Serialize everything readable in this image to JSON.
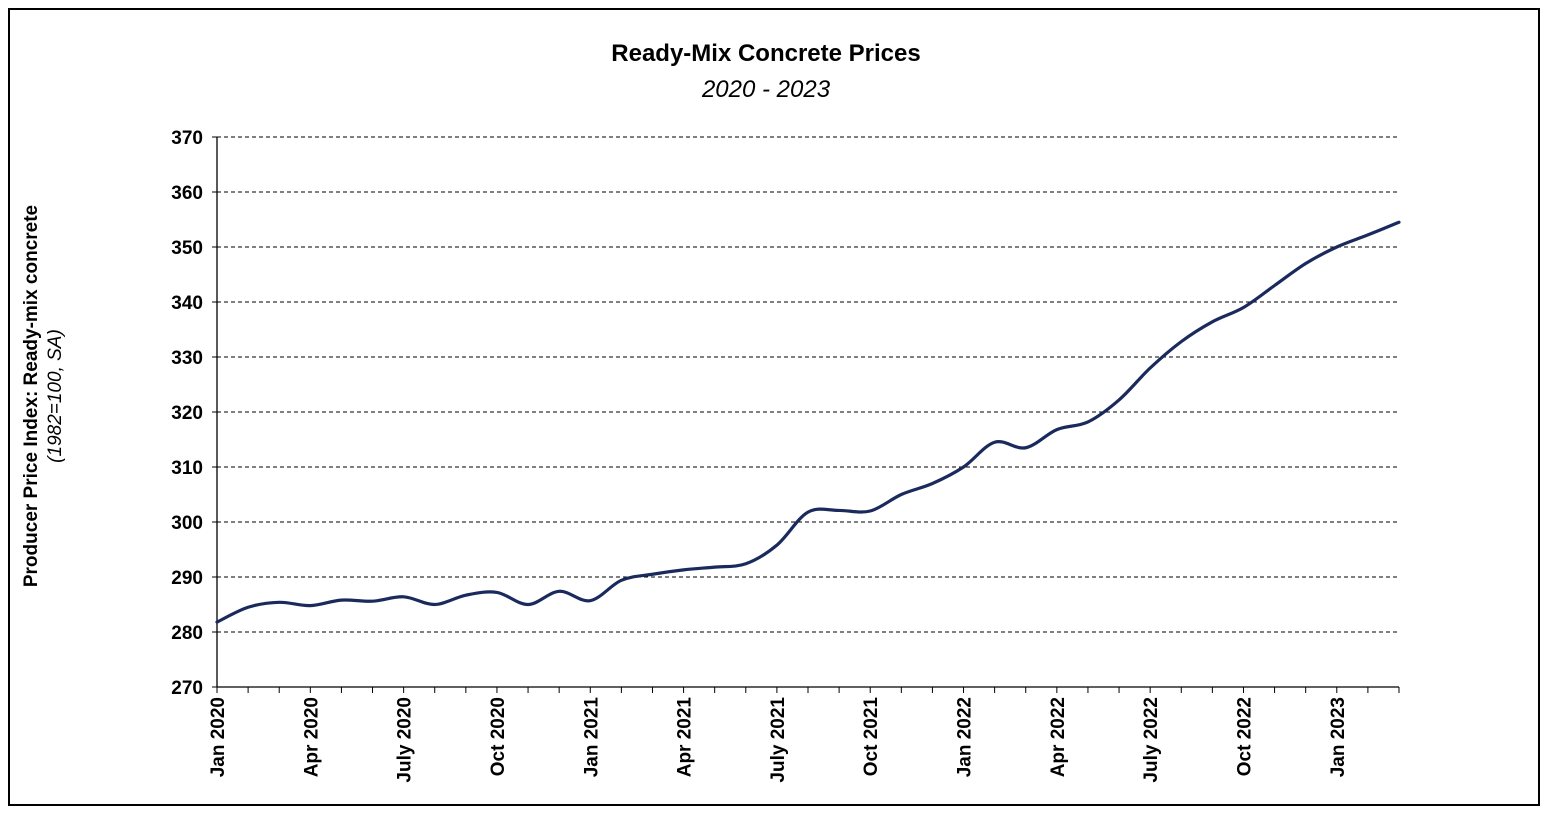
{
  "chart_data": {
    "type": "line",
    "title": "Ready-Mix Concrete Prices",
    "subtitle": "2020 - 2023",
    "ylabel_line1": "Producer Price Index: Ready-mix concrete",
    "ylabel_line2": "(1982=100, SA)",
    "xlabel": "",
    "ylim": [
      270,
      370
    ],
    "yticks": [
      270,
      280,
      290,
      300,
      310,
      320,
      330,
      340,
      350,
      360,
      370
    ],
    "grid": "horizontal dashed",
    "legend": "none",
    "line_color": "#1a2a5c",
    "x_tick_labels": [
      {
        "index": 0,
        "label": "Jan 2020"
      },
      {
        "index": 3,
        "label": "Apr 2020"
      },
      {
        "index": 6,
        "label": "July 2020"
      },
      {
        "index": 9,
        "label": "Oct 2020"
      },
      {
        "index": 12,
        "label": "Jan 2021"
      },
      {
        "index": 15,
        "label": "Apr 2021"
      },
      {
        "index": 18,
        "label": "July 2021"
      },
      {
        "index": 21,
        "label": "Oct 2021"
      },
      {
        "index": 24,
        "label": "Jan 2022"
      },
      {
        "index": 27,
        "label": "Apr 2022"
      },
      {
        "index": 30,
        "label": "July 2022"
      },
      {
        "index": 33,
        "label": "Oct 2022"
      },
      {
        "index": 36,
        "label": "Jan 2023"
      }
    ],
    "series": [
      {
        "values": [
          281.8,
          284.5,
          285.4,
          284.8,
          285.8,
          285.6,
          286.4,
          285.0,
          286.7,
          287.2,
          285.0,
          287.4,
          285.7,
          289.4,
          290.5,
          291.3,
          291.8,
          292.4,
          295.8,
          301.8,
          302.1,
          302.0,
          305.0,
          307.0,
          310.0,
          314.5,
          313.5,
          316.8,
          318.2,
          322.2,
          328.0,
          332.8,
          336.4,
          339.0,
          343.0,
          347.0,
          350.0,
          352.2,
          354.5
        ]
      }
    ]
  }
}
